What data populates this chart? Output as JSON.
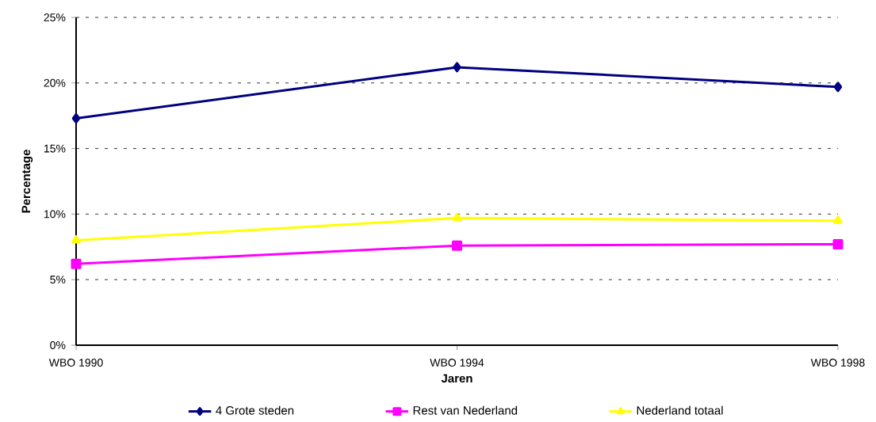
{
  "chart_data": {
    "type": "line",
    "xlabel": "Jaren",
    "ylabel": "Percentage",
    "categories": [
      "WBO 1990",
      "WBO 1994",
      "WBO 1998"
    ],
    "series": [
      {
        "name": "4 Grote steden",
        "color": "#000080",
        "marker": "diamond",
        "values": [
          17.3,
          21.2,
          19.7
        ]
      },
      {
        "name": "Rest van Nederland",
        "color": "#ff00ff",
        "marker": "square",
        "values": [
          6.2,
          7.6,
          7.7
        ]
      },
      {
        "name": "Nederland totaal",
        "color": "#ffff00",
        "marker": "triangle",
        "values": [
          8.0,
          9.7,
          9.5
        ]
      }
    ],
    "ylim": [
      0,
      25
    ],
    "yticks": [
      {
        "value": 0,
        "label": "0%"
      },
      {
        "value": 5,
        "label": "5%"
      },
      {
        "value": 10,
        "label": "10%"
      },
      {
        "value": 15,
        "label": "15%"
      },
      {
        "value": 20,
        "label": "20%"
      },
      {
        "value": 25,
        "label": "25%"
      }
    ],
    "grid": "y",
    "legend": "bottom",
    "line_style": "solid"
  }
}
